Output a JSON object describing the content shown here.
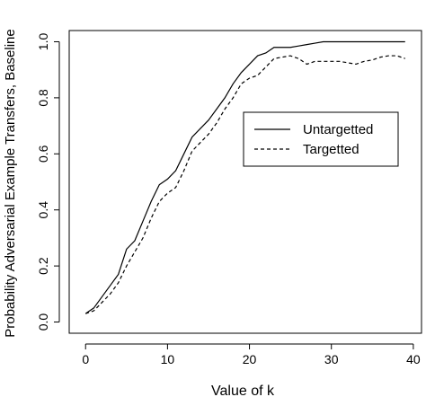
{
  "chart_data": {
    "type": "line",
    "title": "",
    "xlabel": "Value of k",
    "ylabel": "Probability Adversarial Example Transfers, Baseline",
    "xlim": [
      -2.0,
      41.0
    ],
    "ylim": [
      -0.04,
      1.04
    ],
    "xticks": [
      0,
      10,
      20,
      30,
      40
    ],
    "yticks": [
      0.0,
      0.2,
      0.4,
      0.6,
      0.8,
      1.0
    ],
    "xtick_labels": [
      "0",
      "10",
      "20",
      "30",
      "40"
    ],
    "ytick_labels": [
      "0.0",
      "0.2",
      "0.4",
      "0.6",
      "0.8",
      "1.0"
    ],
    "grid": false,
    "legend_position": "right-center",
    "series": [
      {
        "name": "Untargetted",
        "style": "solid",
        "points": [
          [
            0,
            0.03
          ],
          [
            1,
            0.05
          ],
          [
            2,
            0.09
          ],
          [
            3,
            0.13
          ],
          [
            4,
            0.17
          ],
          [
            5,
            0.26
          ],
          [
            6,
            0.29
          ],
          [
            7,
            0.36
          ],
          [
            8,
            0.43
          ],
          [
            9,
            0.49
          ],
          [
            10,
            0.51
          ],
          [
            11,
            0.54
          ],
          [
            12,
            0.6
          ],
          [
            13,
            0.66
          ],
          [
            14,
            0.69
          ],
          [
            15,
            0.72
          ],
          [
            16,
            0.76
          ],
          [
            17,
            0.8
          ],
          [
            18,
            0.85
          ],
          [
            19,
            0.89
          ],
          [
            20,
            0.92
          ],
          [
            21,
            0.95
          ],
          [
            22,
            0.96
          ],
          [
            23,
            0.98
          ],
          [
            24,
            0.98
          ],
          [
            25,
            0.98
          ],
          [
            26,
            0.985
          ],
          [
            27,
            0.99
          ],
          [
            28,
            0.995
          ],
          [
            29,
            1.0
          ],
          [
            30,
            1.0
          ],
          [
            31,
            1.0
          ],
          [
            32,
            1.0
          ],
          [
            33,
            1.0
          ],
          [
            34,
            1.0
          ],
          [
            35,
            1.0
          ],
          [
            36,
            1.0
          ],
          [
            37,
            1.0
          ],
          [
            38,
            1.0
          ],
          [
            39,
            1.0
          ]
        ]
      },
      {
        "name": "Targetted",
        "style": "dashed",
        "points": [
          [
            0,
            0.03
          ],
          [
            1,
            0.04
          ],
          [
            2,
            0.07
          ],
          [
            3,
            0.1
          ],
          [
            4,
            0.14
          ],
          [
            5,
            0.2
          ],
          [
            6,
            0.25
          ],
          [
            7,
            0.3
          ],
          [
            8,
            0.37
          ],
          [
            9,
            0.43
          ],
          [
            10,
            0.46
          ],
          [
            11,
            0.48
          ],
          [
            12,
            0.54
          ],
          [
            13,
            0.61
          ],
          [
            14,
            0.64
          ],
          [
            15,
            0.67
          ],
          [
            16,
            0.71
          ],
          [
            17,
            0.76
          ],
          [
            18,
            0.8
          ],
          [
            19,
            0.85
          ],
          [
            20,
            0.87
          ],
          [
            21,
            0.88
          ],
          [
            22,
            0.91
          ],
          [
            23,
            0.94
          ],
          [
            24,
            0.945
          ],
          [
            25,
            0.95
          ],
          [
            26,
            0.94
          ],
          [
            27,
            0.92
          ],
          [
            28,
            0.93
          ],
          [
            29,
            0.93
          ],
          [
            30,
            0.93
          ],
          [
            31,
            0.93
          ],
          [
            32,
            0.925
          ],
          [
            33,
            0.92
          ],
          [
            34,
            0.93
          ],
          [
            35,
            0.935
          ],
          [
            36,
            0.945
          ],
          [
            37,
            0.95
          ],
          [
            38,
            0.95
          ],
          [
            39,
            0.94
          ]
        ]
      }
    ]
  }
}
